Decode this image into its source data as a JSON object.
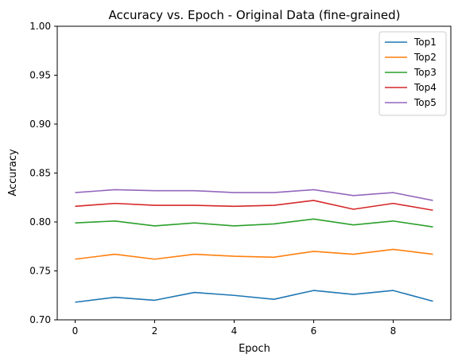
{
  "chart_data": {
    "type": "line",
    "title": "Accuracy vs. Epoch - Original Data (fine-grained)",
    "xlabel": "Epoch",
    "ylabel": "Accuracy",
    "xlim": [
      -0.45,
      9.45
    ],
    "ylim": [
      0.7,
      1.0
    ],
    "xticks": [
      0,
      2,
      4,
      6,
      8
    ],
    "yticks": [
      0.7,
      0.75,
      0.8,
      0.85,
      0.9,
      0.95,
      1.0
    ],
    "ytick_labels": [
      "0.70",
      "0.75",
      "0.80",
      "0.85",
      "0.90",
      "0.95",
      "1.00"
    ],
    "grid": false,
    "legend_position": "top-right",
    "x": [
      0,
      1,
      2,
      3,
      4,
      5,
      6,
      7,
      8,
      9
    ],
    "series": [
      {
        "name": "Top1",
        "color": "#1f77b4",
        "values": [
          0.718,
          0.723,
          0.72,
          0.728,
          0.725,
          0.721,
          0.73,
          0.726,
          0.73,
          0.719
        ]
      },
      {
        "name": "Top2",
        "color": "#ff7f0e",
        "values": [
          0.762,
          0.767,
          0.762,
          0.767,
          0.765,
          0.764,
          0.77,
          0.767,
          0.772,
          0.767
        ]
      },
      {
        "name": "Top3",
        "color": "#2ca02c",
        "values": [
          0.799,
          0.801,
          0.796,
          0.799,
          0.796,
          0.798,
          0.803,
          0.797,
          0.801,
          0.795
        ]
      },
      {
        "name": "Top4",
        "color": "#d62728",
        "values": [
          0.816,
          0.819,
          0.817,
          0.817,
          0.816,
          0.817,
          0.822,
          0.813,
          0.819,
          0.812
        ]
      },
      {
        "name": "Top5",
        "color": "#9467bd",
        "values": [
          0.83,
          0.833,
          0.832,
          0.832,
          0.83,
          0.83,
          0.833,
          0.827,
          0.83,
          0.822
        ]
      }
    ]
  }
}
